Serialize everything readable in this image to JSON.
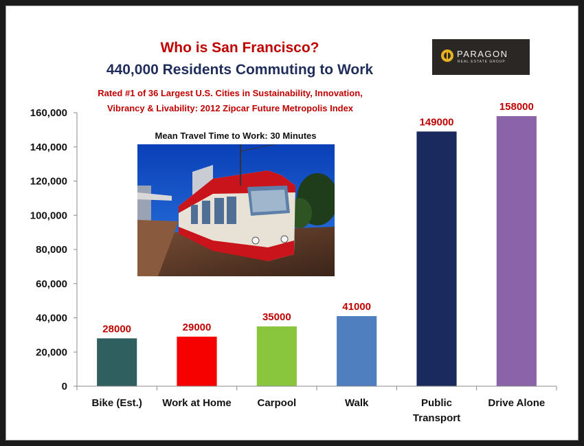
{
  "header": {
    "title": "Who is San Francisco?",
    "subtitle": "440,000 Residents Commuting to Work",
    "note_line1": "Rated #1 of 36 Largest U.S. Cities in Sustainability, Innovation,",
    "note_line2": "Vibrancy & Livability:  2012 Zipcar Future Metropolis Index",
    "photo_caption": "Mean Travel Time to Work: 30 Minutes"
  },
  "logo": {
    "name": "PARAGON",
    "tagline": "REAL ESTATE GROUP",
    "icon": "sunburst-logo-icon"
  },
  "photo": {
    "subject": "streetcar-photo"
  },
  "colors": {
    "title": "#c00000",
    "subtitle": "#1f2d5a",
    "note": "#c00000",
    "data_label": "#c00000"
  },
  "chart_data": {
    "type": "bar",
    "categories": [
      "Bike (Est.)",
      "Work at Home",
      "Carpool",
      "Walk",
      "Public Transport",
      "Drive Alone"
    ],
    "category_lines": [
      [
        "Bike (Est.)"
      ],
      [
        "Work at Home"
      ],
      [
        "Carpool"
      ],
      [
        "Walk"
      ],
      [
        "Public",
        "Transport"
      ],
      [
        "Drive Alone"
      ]
    ],
    "values": [
      28000,
      29000,
      35000,
      41000,
      149000,
      158000
    ],
    "data_labels": [
      "28000",
      "29000",
      "35000",
      "41000",
      "149000",
      "158000"
    ],
    "bar_colors": [
      "#2f5f5f",
      "#f70000",
      "#8ac63d",
      "#4f7fbf",
      "#1b2a5e",
      "#8a63a8"
    ],
    "ylim": [
      0,
      160000
    ],
    "yticks": [
      0,
      20000,
      40000,
      60000,
      80000,
      100000,
      120000,
      140000,
      160000
    ],
    "ytick_labels": [
      "0",
      "20,000",
      "40,000",
      "60,000",
      "80,000",
      "100,000",
      "120,000",
      "140,000",
      "160,000"
    ],
    "xlabel": "",
    "ylabel": "",
    "grid": false,
    "legend": "none"
  }
}
